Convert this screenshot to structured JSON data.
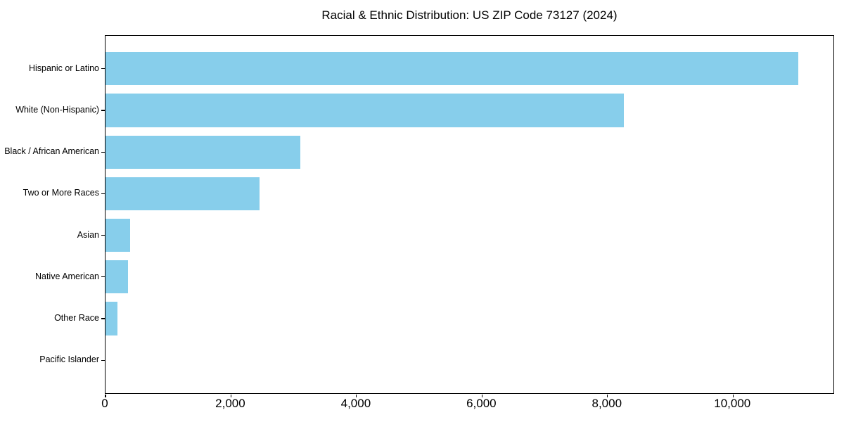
{
  "chart_data": {
    "type": "bar",
    "orientation": "horizontal",
    "title": "Racial & Ethnic Distribution: US ZIP Code 73127 (2024)",
    "categories": [
      "Hispanic or Latino",
      "White (Non-Hispanic)",
      "Black / African American",
      "Two or More Races",
      "Asian",
      "Native American",
      "Other Race",
      "Pacific Islander"
    ],
    "values": [
      11040,
      8260,
      3110,
      2460,
      390,
      360,
      190,
      0
    ],
    "xlabel": "",
    "ylabel": "",
    "xlim": [
      0,
      11600
    ],
    "x_ticks": [
      0,
      2000,
      4000,
      6000,
      8000,
      10000
    ],
    "x_tick_labels": [
      "0",
      "2,000",
      "4,000",
      "6,000",
      "8,000",
      "10,000"
    ],
    "grid": false,
    "legend": null,
    "bar_color": "#87CEEB",
    "axis_color": "#000000",
    "background_color": "#FFFFFF"
  }
}
